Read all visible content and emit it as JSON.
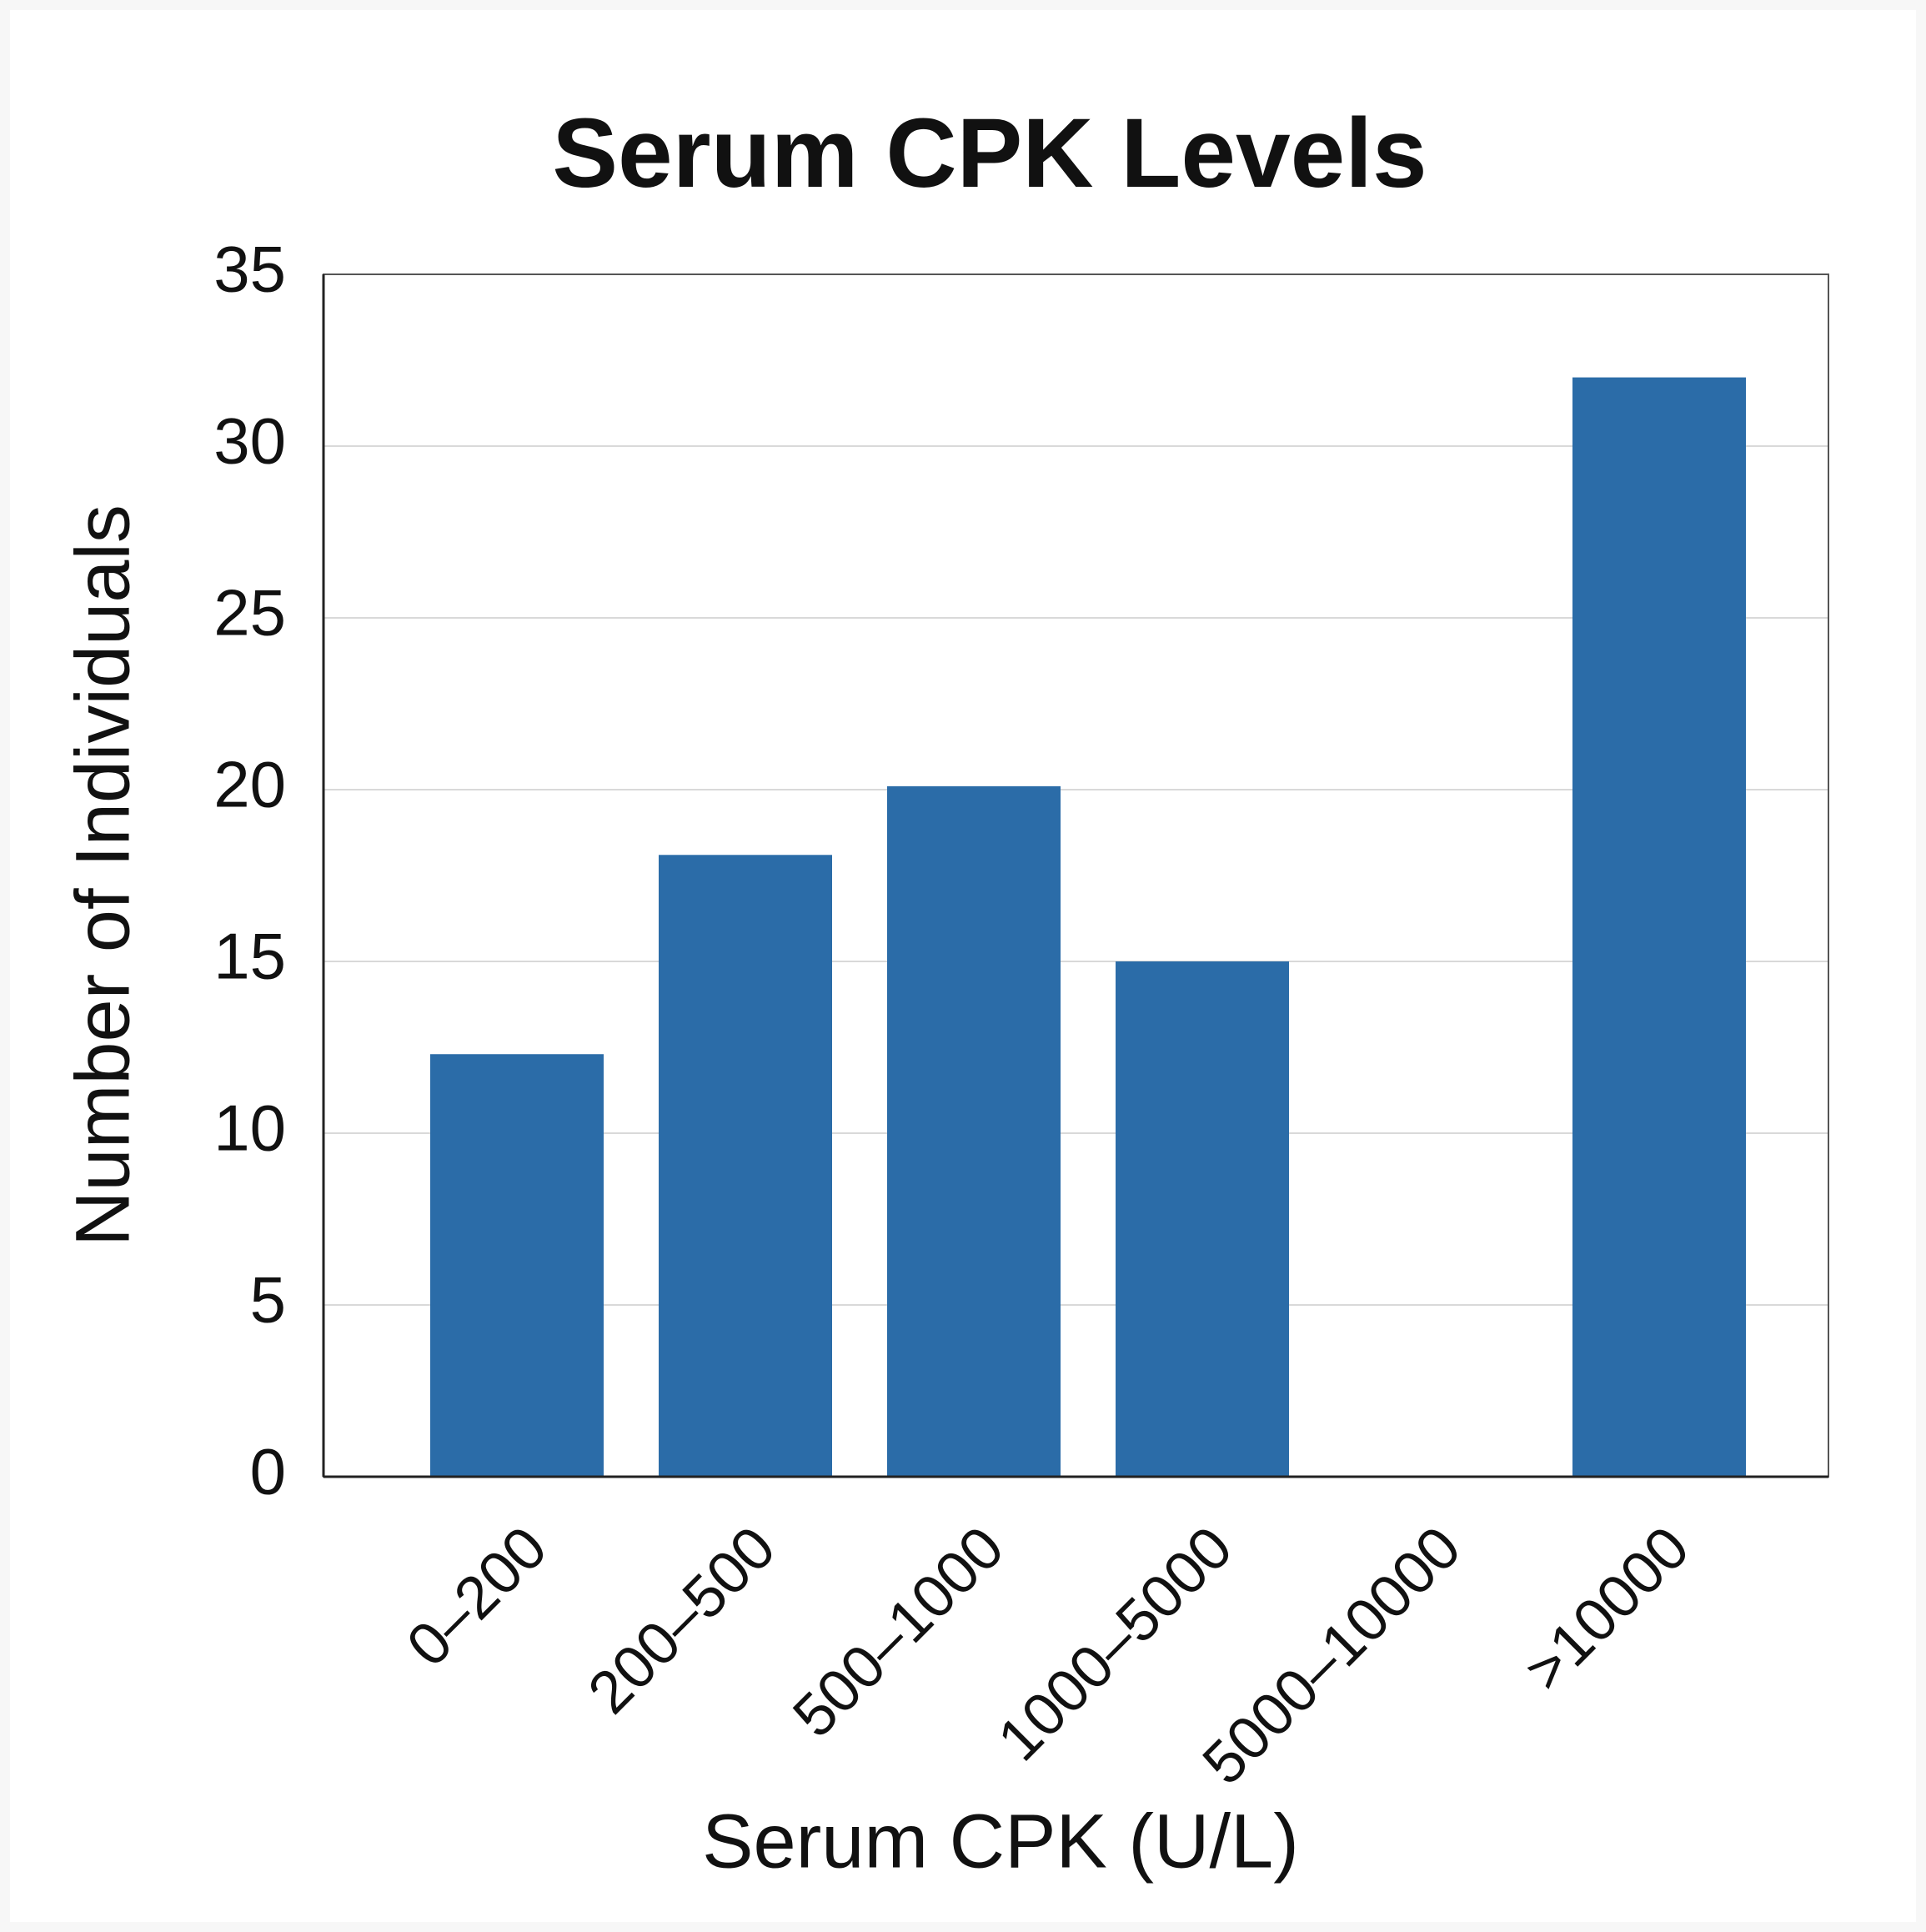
{
  "chart_data": {
    "type": "bar",
    "title": "Serum CPK Levels",
    "x_label": "Serum CPK (U/L)",
    "y_label": "Number of Individuals",
    "categories": [
      "0–200",
      "200–500",
      "500–1000",
      "1000–5000",
      "5000–10000",
      ">10000"
    ],
    "values": [
      12.3,
      18.1,
      20.1,
      15,
      0,
      32
    ],
    "color": "#2b6ca8",
    "ylim": [
      0,
      35
    ],
    "yticks": [
      0,
      5,
      10,
      15,
      20,
      25,
      30,
      35
    ],
    "grid": true
  }
}
